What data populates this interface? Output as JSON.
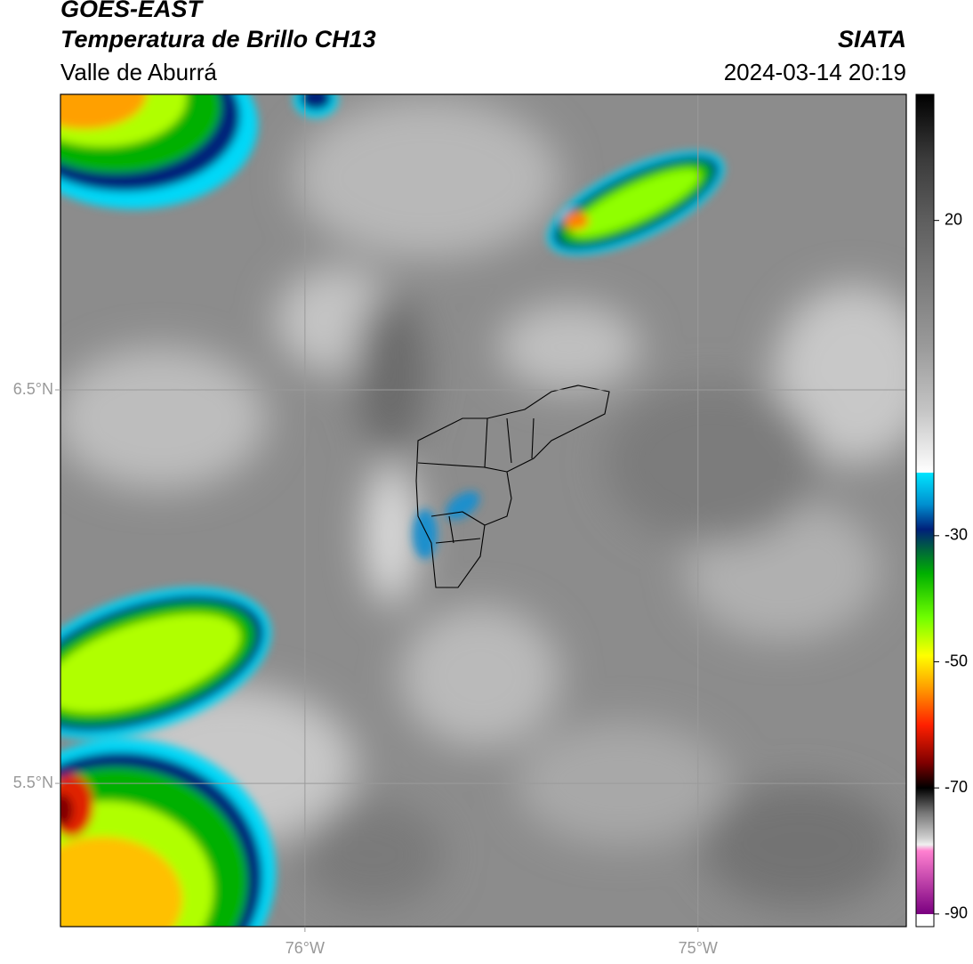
{
  "header": {
    "title": "GOES-EAST",
    "subtitle": "Temperatura de Brillo CH13",
    "region": "Valle de Aburrá",
    "source": "SIATA",
    "timestamp": "2024-03-14 20:19"
  },
  "map": {
    "xlim": [
      -76.622,
      -74.47
    ],
    "ylim": [
      5.136,
      7.251
    ],
    "grid": true,
    "grid_color": "#9a9a9a",
    "xticks": [
      {
        "value": -76,
        "label": "76°W"
      },
      {
        "value": -75,
        "label": "75°W"
      }
    ],
    "yticks": [
      {
        "value": 6.5,
        "label": "6.5°N"
      },
      {
        "value": 5.5,
        "label": "5.5°N"
      }
    ]
  },
  "colorbar": {
    "clim": [
      -92,
      40
    ],
    "ticks": [
      20,
      -30,
      -50,
      -70,
      -90
    ],
    "colormap": [
      {
        "value": 40,
        "color": "#000000"
      },
      {
        "value": 30,
        "color": "#3a3a3a"
      },
      {
        "value": 20,
        "color": "#5e5e5e"
      },
      {
        "value": 0,
        "color": "#9a9a9a"
      },
      {
        "value": -10,
        "color": "#c4c4c4"
      },
      {
        "value": -20,
        "color": "#ffffff"
      },
      {
        "value": -20,
        "color": "#00e5ff"
      },
      {
        "value": -25,
        "color": "#0090d0"
      },
      {
        "value": -29,
        "color": "#00207a"
      },
      {
        "value": -32,
        "color": "#006040"
      },
      {
        "value": -36,
        "color": "#00b000"
      },
      {
        "value": -43,
        "color": "#70ff00"
      },
      {
        "value": -49,
        "color": "#ffff00"
      },
      {
        "value": -54,
        "color": "#ffa000"
      },
      {
        "value": -60,
        "color": "#ff2000"
      },
      {
        "value": -66,
        "color": "#800000"
      },
      {
        "value": -70,
        "color": "#000000"
      },
      {
        "value": -74,
        "color": "#777777"
      },
      {
        "value": -78,
        "color": "#d0d0d0"
      },
      {
        "value": -79,
        "color": "#f0f0f0"
      },
      {
        "value": -80,
        "color": "#ff80d0"
      },
      {
        "value": -90,
        "color": "#7a0080"
      },
      {
        "value": -90,
        "color": "#ffffff"
      },
      {
        "value": -92,
        "color": "#ffffff"
      }
    ]
  }
}
